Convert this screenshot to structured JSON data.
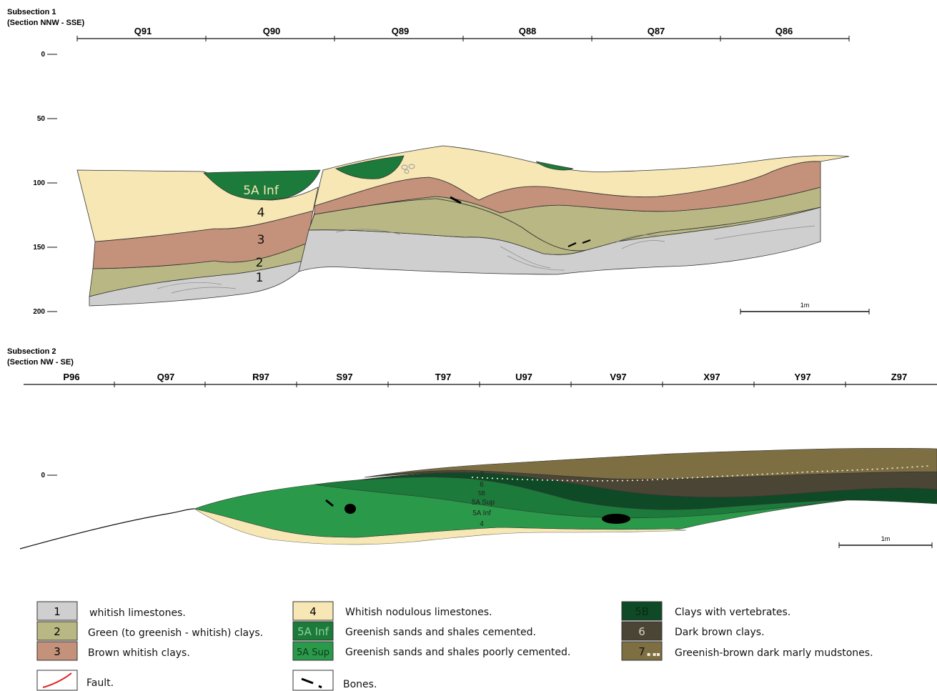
{
  "subsection1": {
    "title_line1": "Subsection 1",
    "title_line2": "(Section NNW - SSE)",
    "columns": [
      "Q91",
      "Q90",
      "Q89",
      "Q88",
      "Q87",
      "Q86"
    ],
    "depth_ticks": [
      "0",
      "50",
      "100",
      "150",
      "200"
    ],
    "layer_labels": [
      "5A Inf",
      "4",
      "3",
      "2",
      "1"
    ],
    "scale_label": "1m"
  },
  "subsection2": {
    "title_line1": "Subsection 2",
    "title_line2": "(Section NW - SE)",
    "columns": [
      "P96",
      "Q97",
      "R97",
      "S97",
      "T97",
      "U97",
      "V97",
      "X97",
      "Y97",
      "Z97"
    ],
    "depth_ticks": [
      "0"
    ],
    "layer_labels": [
      "7",
      "6",
      "5B",
      "5A Sup",
      "5A Inf",
      "4"
    ],
    "scale_label": "1m"
  },
  "legend": [
    {
      "code": "1",
      "label": "whitish limestones.",
      "color": "#cfcfcf"
    },
    {
      "code": "2",
      "label": "Green (to greenish - whitish) clays.",
      "color": "#b9b884"
    },
    {
      "code": "3",
      "label": "Brown whitish clays.",
      "color": "#c4917a"
    },
    {
      "code": "4",
      "label": "Whitish nodulous limestones.",
      "color": "#f6e7b4"
    },
    {
      "code": "5A Inf",
      "label": "Greenish sands and shales cemented.",
      "color": "#1c7a3a"
    },
    {
      "code": "5A Sup",
      "label": "Greenish sands and shales poorly cemented.",
      "color": "#2a9a4a"
    },
    {
      "code": "5B",
      "label": "Clays with vertebrates.",
      "color": "#0f4a26"
    },
    {
      "code": "6",
      "label": "Dark brown clays.",
      "color": "#4a4535"
    },
    {
      "code": "7",
      "label": "Greenish-brown dark marly mudstones.",
      "color": "#7e6f43"
    },
    {
      "code": "",
      "label": "Fault.",
      "color": "#e02020"
    },
    {
      "code": "",
      "label": "Bones.",
      "color": "#000000"
    }
  ]
}
